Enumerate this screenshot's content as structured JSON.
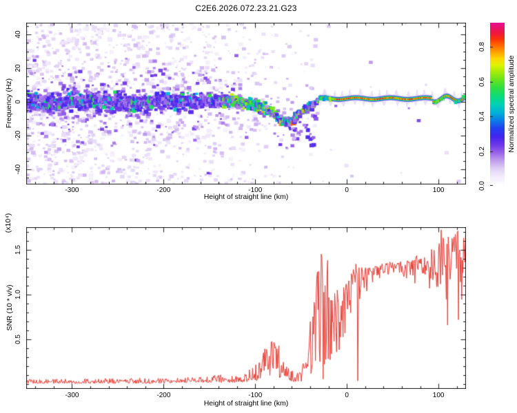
{
  "title": "C2E6.2026.072.23.21.G23",
  "palette": {
    "axis": "#1a1a1a",
    "background": "#ffffff"
  },
  "chart_data": [
    {
      "type": "heatmap",
      "panel": "spectrogram",
      "xlabel": "Height of straight line (km)",
      "ylabel": "Frequency (Hz)",
      "xlim": [
        -350,
        130
      ],
      "ylim": [
        -49,
        47
      ],
      "x_tick_values": [
        -300,
        -200,
        -100,
        0,
        100
      ],
      "x_tick_labels": [
        "-300",
        "-200",
        "-100",
        "0",
        "100"
      ],
      "x_minor_step": 20,
      "y_tick_values": [
        -40,
        -20,
        0,
        20,
        40
      ],
      "y_tick_labels": [
        "-40",
        "-20",
        "0",
        "20",
        "40"
      ],
      "y_minor_step": 5,
      "grid": false,
      "colorbar": {
        "label": "Normalized spectral amplitude",
        "tick_values": [
          0,
          0.2,
          0.4,
          0.6,
          0.8
        ],
        "tick_labels": [
          "0.0",
          "0.2",
          "0.4",
          "0.6",
          "0.8"
        ],
        "value_range": [
          0,
          0.94
        ],
        "colormap_stops": [
          [
            0.0,
            "#ffffff"
          ],
          [
            0.05,
            "#f4eefb"
          ],
          [
            0.1,
            "#e2d3f6"
          ],
          [
            0.15,
            "#c3a2ee"
          ],
          [
            0.2,
            "#9a66e9"
          ],
          [
            0.25,
            "#6d38e8"
          ],
          [
            0.3,
            "#4326ee"
          ],
          [
            0.35,
            "#2440f2"
          ],
          [
            0.4,
            "#0c7ce8"
          ],
          [
            0.45,
            "#00b2d8"
          ],
          [
            0.5,
            "#00d2b4"
          ],
          [
            0.55,
            "#0cdc78"
          ],
          [
            0.6,
            "#2ede44"
          ],
          [
            0.65,
            "#66e41e"
          ],
          [
            0.7,
            "#a6ec08"
          ],
          [
            0.74,
            "#dff400"
          ],
          [
            0.78,
            "#ffd800"
          ],
          [
            0.82,
            "#ffa400"
          ],
          [
            0.86,
            "#ff6c00"
          ],
          [
            0.9,
            "#fb3408"
          ],
          [
            0.94,
            "#f01641"
          ],
          [
            1.0,
            "#e60f8f"
          ]
        ]
      },
      "signal_trace": {
        "centerline_hz": [
          [
            -350,
            0.3
          ],
          [
            -320,
            -0.4
          ],
          [
            -290,
            0.6
          ],
          [
            -260,
            0.1
          ],
          [
            -230,
            -0.5
          ],
          [
            -200,
            0.4
          ],
          [
            -175,
            -0.2
          ],
          [
            -150,
            0.5
          ],
          [
            -135,
            0.8
          ],
          [
            -120,
            0.2
          ],
          [
            -105,
            -1.5
          ],
          [
            -95,
            -3
          ],
          [
            -85,
            -5.5
          ],
          [
            -75,
            -9.5
          ],
          [
            -67,
            -12.5
          ],
          [
            -60,
            -11
          ],
          [
            -54,
            -8
          ],
          [
            -48,
            -5.5
          ],
          [
            -42,
            -3.5
          ],
          [
            -36,
            -1.5
          ],
          [
            -30,
            1.5
          ],
          [
            130,
            2
          ]
        ],
        "halfwidth_hz": [
          [
            -350,
            11
          ],
          [
            -280,
            10
          ],
          [
            -220,
            9
          ],
          [
            -170,
            8
          ],
          [
            -130,
            7
          ],
          [
            -100,
            6
          ],
          [
            -75,
            5.2
          ],
          [
            -55,
            4.5
          ],
          [
            -40,
            3.8
          ],
          [
            -30,
            3
          ]
        ],
        "narrow_line_start_km": -30,
        "narrow_line_freq_hz": 2,
        "core_amplitude_range": [
          0.8,
          1.0
        ]
      },
      "background_speckle_density": [
        [
          -350,
          1.0
        ],
        [
          -260,
          0.9
        ],
        [
          -200,
          0.7
        ],
        [
          -160,
          0.55
        ],
        [
          -130,
          0.42
        ],
        [
          -100,
          0.3
        ],
        [
          -70,
          0.2
        ],
        [
          -50,
          0.12
        ],
        [
          -35,
          0.06
        ],
        [
          -20,
          0.02
        ],
        [
          130,
          0.015
        ]
      ],
      "tail_blobs": [
        {
          "km": -62,
          "f": -16
        },
        {
          "km": -59,
          "f": -19
        },
        {
          "km": -57,
          "f": -17
        },
        {
          "km": -45,
          "f": -14
        },
        {
          "km": -43,
          "f": -17
        },
        {
          "km": -41,
          "f": -20
        },
        {
          "km": -40,
          "f": -23
        },
        {
          "km": -38,
          "f": -26
        },
        {
          "km": -36,
          "f": -22
        },
        {
          "km": -33,
          "f": -9
        },
        {
          "km": -228,
          "f": -35
        },
        {
          "km": -150,
          "f": -43
        },
        {
          "km": -120,
          "f": 28
        }
      ]
    },
    {
      "type": "line",
      "panel": "snr",
      "xlabel": "Height of straight line (km)",
      "ylabel": "SNR (10 * v/v)",
      "y_scale_note": "(x10⁴)",
      "xlim": [
        -350,
        130
      ],
      "ylim": [
        -0.05,
        1.75
      ],
      "x_tick_values": [
        -300,
        -200,
        -100,
        0,
        100
      ],
      "x_tick_labels": [
        "-300",
        "-200",
        "-100",
        "0",
        "100"
      ],
      "x_minor_step": 20,
      "y_tick_values": [
        0.5,
        1.0,
        1.5
      ],
      "y_tick_labels": [
        "0.5",
        "1.0",
        "1.5"
      ],
      "y_minor_step": 0.1,
      "grid": false,
      "series": [
        {
          "name": "SNR",
          "color": "#e83a30",
          "sample_step_km": 0.7,
          "envelope_km_lo_hi_exp": [
            [
              -350,
              0.01,
              0.06,
              1.6
            ],
            [
              -300,
              0.01,
              0.06,
              1.6
            ],
            [
              -250,
              0.01,
              0.07,
              1.6
            ],
            [
              -210,
              0.01,
              0.07,
              1.6
            ],
            [
              -175,
              0.02,
              0.08,
              1.6
            ],
            [
              -150,
              0.02,
              0.1,
              1.5
            ],
            [
              -135,
              0.02,
              0.12,
              1.5
            ],
            [
              -122,
              0.02,
              0.1,
              1.5
            ],
            [
              -108,
              0.03,
              0.15,
              1.4
            ],
            [
              -97,
              0.04,
              0.25,
              1.2
            ],
            [
              -90,
              0.07,
              0.4,
              1.1
            ],
            [
              -83,
              0.1,
              0.55,
              1.0
            ],
            [
              -77,
              0.09,
              0.5,
              1.0
            ],
            [
              -71,
              0.06,
              0.36,
              1.1
            ],
            [
              -65,
              0.04,
              0.2,
              1.3
            ],
            [
              -58,
              0.03,
              0.14,
              1.5
            ],
            [
              -50,
              0.03,
              0.17,
              1.4
            ],
            [
              -44,
              0.04,
              0.45,
              1.1
            ],
            [
              -38,
              0.05,
              1.0,
              0.9
            ],
            [
              -33,
              0.06,
              1.28,
              0.85
            ],
            [
              -28,
              0.08,
              1.45,
              0.85
            ],
            [
              -23,
              0.08,
              1.32,
              0.9
            ],
            [
              -19,
              0.12,
              1.05,
              0.9
            ],
            [
              -15,
              0.22,
              1.02,
              0.8
            ],
            [
              -10,
              0.32,
              1.08,
              0.7
            ],
            [
              -5,
              0.4,
              1.15,
              0.62
            ],
            [
              0,
              0.5,
              1.22,
              0.55
            ],
            [
              6,
              0.62,
              1.3,
              0.5
            ],
            [
              12,
              0.76,
              1.32,
              0.48
            ],
            [
              18,
              0.92,
              1.3,
              0.45
            ],
            [
              25,
              1.05,
              1.31,
              0.45
            ],
            [
              35,
              1.14,
              1.34,
              0.45
            ],
            [
              50,
              1.17,
              1.37,
              0.45
            ],
            [
              65,
              1.14,
              1.4,
              0.48
            ],
            [
              78,
              1.05,
              1.45,
              0.5
            ],
            [
              88,
              0.96,
              1.5,
              0.5
            ],
            [
              98,
              0.88,
              1.58,
              0.5
            ],
            [
              108,
              0.8,
              1.66,
              0.5
            ],
            [
              118,
              0.74,
              1.72,
              0.5
            ],
            [
              130,
              0.76,
              1.7,
              0.5
            ]
          ],
          "peaks_km_value": [
            [
              -33,
              1.18
            ],
            [
              -28,
              1.45
            ],
            [
              -26,
              0.06
            ],
            [
              -24,
              1.1
            ],
            [
              -21,
              1.38
            ],
            [
              10,
              1.34
            ],
            [
              12,
              0.04
            ],
            [
              103,
              1.72
            ],
            [
              110,
              0.66
            ],
            [
              117,
              1.64
            ],
            [
              122,
              0.72
            ]
          ]
        }
      ]
    }
  ]
}
